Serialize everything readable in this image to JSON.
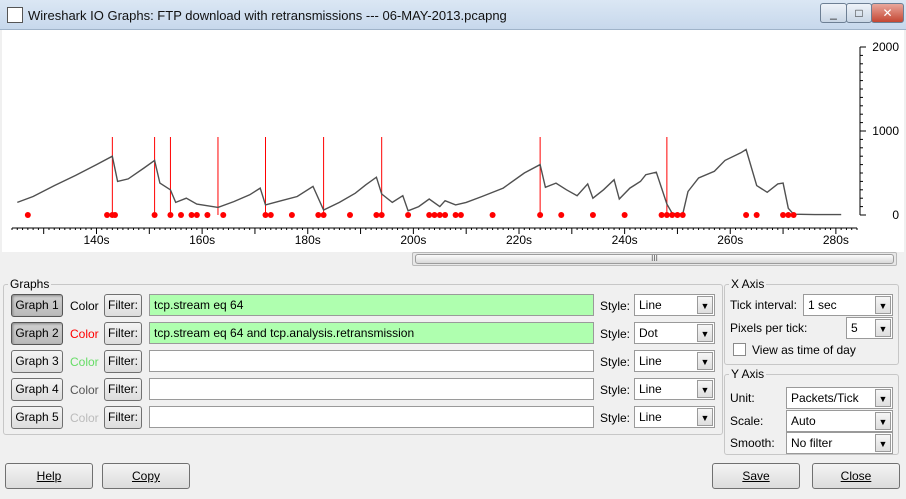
{
  "window": {
    "title": "Wireshark IO Graphs: FTP download with retransmissions --- 06-MAY-2013.pcapng",
    "minimize_glyph": "_",
    "maximize_glyph": "□",
    "close_glyph": "✕"
  },
  "chart_data": {
    "type": "line",
    "x_unit": "s",
    "x_ticks": [
      "140s",
      "160s",
      "180s",
      "200s",
      "220s",
      "240s",
      "260s",
      "280s"
    ],
    "x_tick_values": [
      140,
      160,
      180,
      200,
      220,
      240,
      260,
      280
    ],
    "xlim": [
      124,
      284
    ],
    "y_ticks": [
      "0",
      "1000",
      "2000"
    ],
    "y_tick_values": [
      0,
      1000,
      2000
    ],
    "ylim": [
      0,
      2000
    ],
    "series": [
      {
        "color": "#505050",
        "style": "line",
        "points": [
          [
            125,
            150
          ],
          [
            128,
            220
          ],
          [
            132,
            350
          ],
          [
            136,
            470
          ],
          [
            140,
            600
          ],
          [
            143,
            700
          ],
          [
            144,
            400
          ],
          [
            146,
            430
          ],
          [
            149,
            560
          ],
          [
            151,
            650
          ],
          [
            152,
            380
          ],
          [
            154,
            300
          ],
          [
            155,
            150
          ],
          [
            157,
            200
          ],
          [
            159,
            130
          ],
          [
            163,
            90
          ],
          [
            166,
            160
          ],
          [
            169,
            240
          ],
          [
            171,
            320
          ],
          [
            172,
            120
          ],
          [
            175,
            170
          ],
          [
            178,
            220
          ],
          [
            181,
            340
          ],
          [
            183,
            60
          ],
          [
            186,
            150
          ],
          [
            189,
            260
          ],
          [
            191,
            360
          ],
          [
            193,
            450
          ],
          [
            194,
            250
          ],
          [
            196,
            150
          ],
          [
            198,
            230
          ],
          [
            199,
            50
          ],
          [
            201,
            100
          ],
          [
            203,
            190
          ],
          [
            205,
            100
          ],
          [
            206,
            170
          ],
          [
            208,
            120
          ],
          [
            210,
            150
          ],
          [
            213,
            220
          ],
          [
            217,
            320
          ],
          [
            221,
            500
          ],
          [
            224,
            600
          ],
          [
            225,
            330
          ],
          [
            227,
            380
          ],
          [
            229,
            300
          ],
          [
            231,
            230
          ],
          [
            233,
            370
          ],
          [
            234,
            200
          ],
          [
            236,
            300
          ],
          [
            238,
            420
          ],
          [
            239,
            190
          ],
          [
            241,
            320
          ],
          [
            243,
            400
          ],
          [
            244,
            480
          ],
          [
            246,
            510
          ],
          [
            247,
            320
          ],
          [
            248,
            130
          ],
          [
            249,
            20
          ],
          [
            251,
            10
          ],
          [
            252,
            280
          ],
          [
            254,
            440
          ],
          [
            257,
            520
          ],
          [
            259,
            650
          ],
          [
            262,
            740
          ],
          [
            263,
            780
          ],
          [
            265,
            350
          ],
          [
            267,
            270
          ],
          [
            269,
            370
          ],
          [
            270,
            380
          ],
          [
            271,
            80
          ],
          [
            272,
            10
          ],
          [
            276,
            5
          ],
          [
            281,
            5
          ]
        ]
      },
      {
        "color": "#ff0000",
        "style": "dot",
        "points": [
          [
            127,
            0
          ],
          [
            142,
            0
          ],
          [
            143,
            0
          ],
          [
            143.5,
            0
          ],
          [
            151,
            0
          ],
          [
            154,
            0
          ],
          [
            156,
            0
          ],
          [
            158,
            0
          ],
          [
            159,
            0
          ],
          [
            161,
            0
          ],
          [
            164,
            0
          ],
          [
            172,
            0
          ],
          [
            173,
            0
          ],
          [
            177,
            0
          ],
          [
            182,
            0
          ],
          [
            183,
            0
          ],
          [
            188,
            0
          ],
          [
            193,
            0
          ],
          [
            194,
            0
          ],
          [
            199,
            0
          ],
          [
            203,
            0
          ],
          [
            204,
            0
          ],
          [
            205,
            0
          ],
          [
            206,
            0
          ],
          [
            208,
            0
          ],
          [
            209,
            0
          ],
          [
            215,
            0
          ],
          [
            224,
            0
          ],
          [
            228,
            0
          ],
          [
            234,
            0
          ],
          [
            240,
            0
          ],
          [
            247,
            0
          ],
          [
            248,
            0
          ],
          [
            249,
            0
          ],
          [
            250,
            0
          ],
          [
            251,
            0
          ],
          [
            263,
            0
          ],
          [
            265,
            0
          ],
          [
            270,
            0
          ],
          [
            271,
            0
          ],
          [
            272,
            0
          ]
        ],
        "impulses_at": [
          143,
          151,
          154,
          163,
          172,
          183,
          194,
          224,
          248
        ]
      }
    ]
  },
  "scrollbar": {
    "grip": "III"
  },
  "graphs_group": {
    "title": "Graphs",
    "color_label": "Color",
    "filter_label": "Filter:",
    "style_label": "Style:",
    "rows": [
      {
        "button": "Graph 1",
        "color": "#000000",
        "filter": "tcp.stream eq 64",
        "filter_valid": true,
        "style": "Line",
        "pressed": true
      },
      {
        "button": "Graph 2",
        "color": "#ff0000",
        "filter": "tcp.stream eq 64 and tcp.analysis.retransmission",
        "filter_valid": true,
        "style": "Dot",
        "pressed": true
      },
      {
        "button": "Graph 3",
        "color": "#66dd66",
        "filter": "",
        "filter_valid": false,
        "style": "Line",
        "pressed": false
      },
      {
        "button": "Graph 4",
        "color": "#555555",
        "filter": "",
        "filter_valid": false,
        "style": "Line",
        "pressed": false
      },
      {
        "button": "Graph 5",
        "color": "#bbbbbb",
        "filter": "",
        "filter_valid": false,
        "style": "Line",
        "pressed": false
      }
    ]
  },
  "x_axis": {
    "title": "X Axis",
    "tick_interval_label": "Tick interval:",
    "tick_interval_value": "1 sec",
    "pixels_per_tick_label": "Pixels per tick:",
    "pixels_per_tick_value": "5",
    "view_time_label": "View as time of day",
    "view_time_checked": false
  },
  "y_axis": {
    "title": "Y Axis",
    "unit_label": "Unit:",
    "unit_value": "Packets/Tick",
    "scale_label": "Scale:",
    "scale_value": "Auto",
    "smooth_label": "Smooth:",
    "smooth_value": "No filter"
  },
  "footer": {
    "help": "Help",
    "copy": "Copy",
    "save": "Save",
    "close": "Close"
  }
}
